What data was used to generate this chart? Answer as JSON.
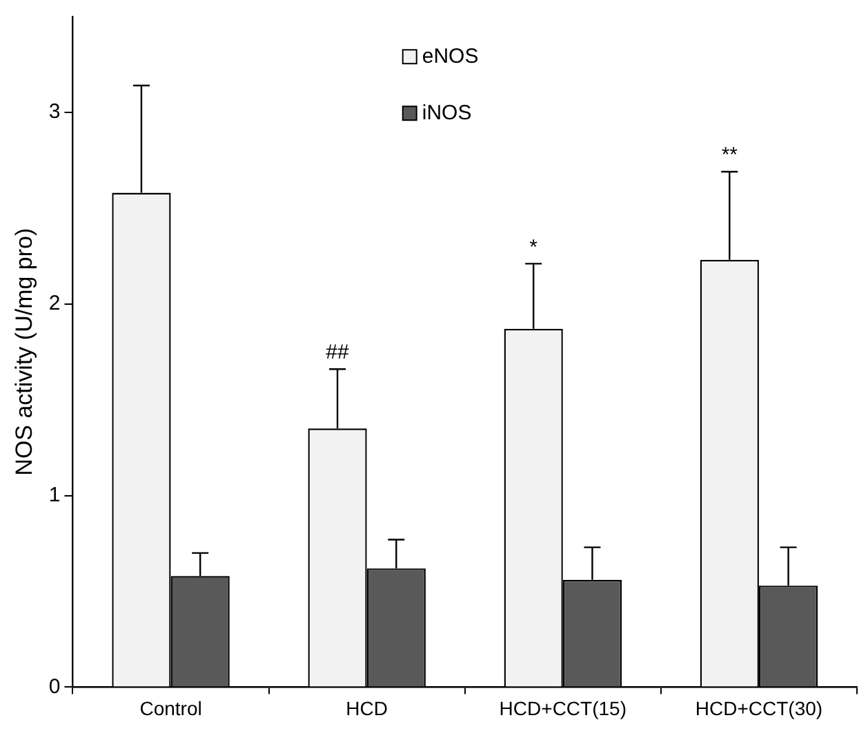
{
  "chart_data": {
    "type": "bar",
    "ylabel": "NOS activity (U/mg pro)",
    "categories": [
      "Control",
      "HCD",
      "HCD+CCT(15)",
      "HCD+CCT(30)"
    ],
    "series": [
      {
        "name": "eNOS",
        "color": "#f2f2f2",
        "values": [
          2.58,
          1.35,
          1.87,
          2.23
        ],
        "errors": [
          [
            2.58,
            3.14
          ],
          [
            1.35,
            1.66
          ],
          [
            1.87,
            2.21
          ],
          [
            2.23,
            2.69
          ]
        ]
      },
      {
        "name": "iNOS",
        "color": "#595959",
        "values": [
          0.58,
          0.62,
          0.56,
          0.53
        ],
        "errors": [
          [
            0.58,
            0.7
          ],
          [
            0.62,
            0.77
          ],
          [
            0.56,
            0.73
          ],
          [
            0.53,
            0.73
          ]
        ]
      }
    ],
    "ylim": [
      0,
      3.5
    ],
    "yticks": [
      0,
      1,
      2,
      3
    ],
    "grid": false,
    "legend": "top",
    "annotations": [
      "##",
      "*",
      "**"
    ]
  }
}
